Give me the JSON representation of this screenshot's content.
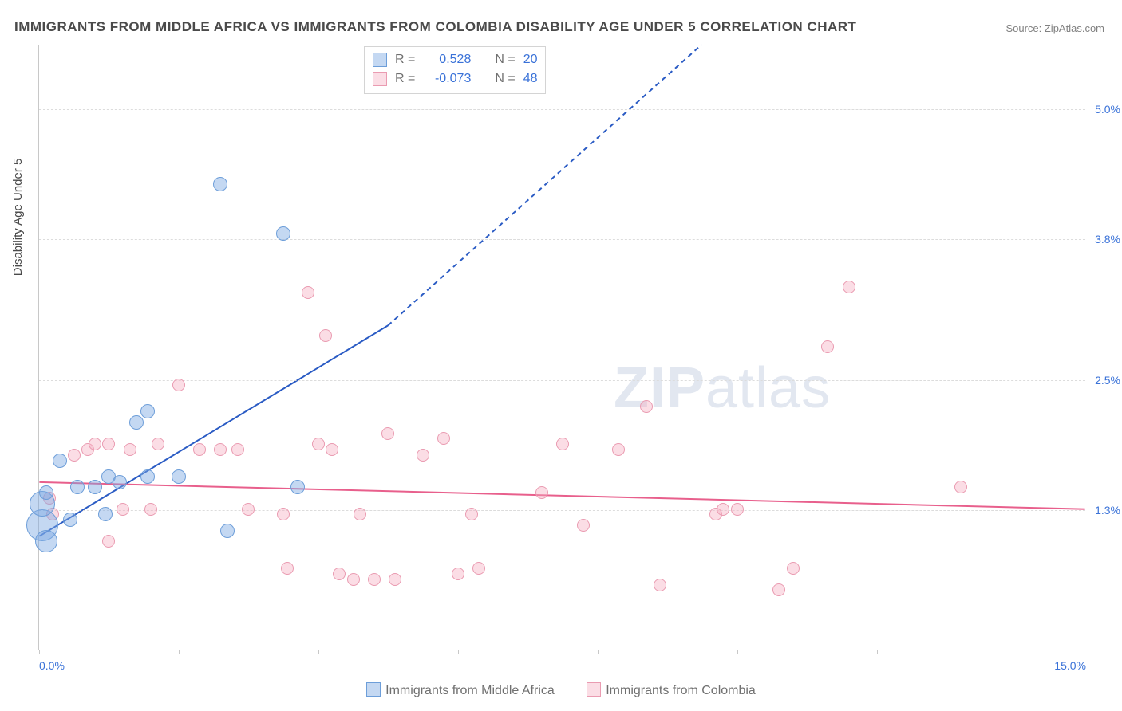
{
  "title": "IMMIGRANTS FROM MIDDLE AFRICA VS IMMIGRANTS FROM COLOMBIA DISABILITY AGE UNDER 5 CORRELATION CHART",
  "source": "Source: ZipAtlas.com",
  "watermark_bold": "ZIP",
  "watermark_rest": "atlas",
  "y_axis_label": "Disability Age Under 5",
  "chart": {
    "type": "scatter",
    "xlim": [
      0.0,
      15.0
    ],
    "ylim": [
      0.0,
      5.6
    ],
    "background_color": "#ffffff",
    "grid_color": "#dcdcdc",
    "axis_color": "#c8c8c8",
    "xtick_positions": [
      0.0,
      2.0,
      4.0,
      6.0,
      8.0,
      10.0,
      12.0,
      14.0
    ],
    "xtick_labels": {
      "0": "0.0%",
      "15": "15.0%"
    },
    "ytick_positions": [
      1.3,
      2.5,
      3.8,
      5.0
    ],
    "ytick_labels": [
      "1.3%",
      "2.5%",
      "3.8%",
      "5.0%"
    ],
    "label_fontsize": 14,
    "label_color": "#3a72d8"
  },
  "series": {
    "blue": {
      "label": "Immigrants from Middle Africa",
      "fill": "rgba(125,168,227,0.45)",
      "stroke": "#6d9ed9",
      "R": "0.528",
      "N": "20",
      "trend": {
        "x1": 0.0,
        "y1": 1.05,
        "x2": 5.0,
        "y2": 3.0,
        "dash_x2": 9.5,
        "dash_y2": 5.6,
        "color": "#2a5bc4",
        "width": 2
      },
      "points": [
        {
          "x": 0.05,
          "y": 1.15,
          "r": 20
        },
        {
          "x": 0.05,
          "y": 1.35,
          "r": 16
        },
        {
          "x": 0.1,
          "y": 1.0,
          "r": 14
        },
        {
          "x": 0.1,
          "y": 1.45,
          "r": 9
        },
        {
          "x": 0.3,
          "y": 1.75,
          "r": 9
        },
        {
          "x": 0.45,
          "y": 1.2,
          "r": 9
        },
        {
          "x": 0.55,
          "y": 1.5,
          "r": 9
        },
        {
          "x": 0.8,
          "y": 1.5,
          "r": 9
        },
        {
          "x": 0.95,
          "y": 1.25,
          "r": 9
        },
        {
          "x": 1.0,
          "y": 1.6,
          "r": 9
        },
        {
          "x": 1.15,
          "y": 1.55,
          "r": 9
        },
        {
          "x": 1.4,
          "y": 2.1,
          "r": 9
        },
        {
          "x": 1.55,
          "y": 2.2,
          "r": 9
        },
        {
          "x": 1.55,
          "y": 1.6,
          "r": 9
        },
        {
          "x": 2.0,
          "y": 1.6,
          "r": 9
        },
        {
          "x": 2.6,
          "y": 4.3,
          "r": 9
        },
        {
          "x": 2.7,
          "y": 1.1,
          "r": 9
        },
        {
          "x": 3.5,
          "y": 3.85,
          "r": 9
        },
        {
          "x": 3.7,
          "y": 1.5,
          "r": 9
        }
      ]
    },
    "pink": {
      "label": "Immigrants from Colombia",
      "fill": "rgba(244,170,190,0.40)",
      "stroke": "#ea9bb1",
      "R": "-0.073",
      "N": "48",
      "trend": {
        "x1": 0.0,
        "y1": 1.55,
        "x2": 15.0,
        "y2": 1.3,
        "color": "#e85f8c",
        "width": 2
      },
      "points": [
        {
          "x": 0.15,
          "y": 1.4,
          "r": 8
        },
        {
          "x": 0.2,
          "y": 1.25,
          "r": 8
        },
        {
          "x": 0.5,
          "y": 1.8,
          "r": 8
        },
        {
          "x": 0.7,
          "y": 1.85,
          "r": 8
        },
        {
          "x": 0.8,
          "y": 1.9,
          "r": 8
        },
        {
          "x": 1.0,
          "y": 1.9,
          "r": 8
        },
        {
          "x": 1.0,
          "y": 1.0,
          "r": 8
        },
        {
          "x": 1.2,
          "y": 1.3,
          "r": 8
        },
        {
          "x": 1.3,
          "y": 1.85,
          "r": 8
        },
        {
          "x": 1.6,
          "y": 1.3,
          "r": 8
        },
        {
          "x": 1.7,
          "y": 1.9,
          "r": 8
        },
        {
          "x": 2.0,
          "y": 2.45,
          "r": 8
        },
        {
          "x": 2.3,
          "y": 1.85,
          "r": 8
        },
        {
          "x": 2.6,
          "y": 1.85,
          "r": 8
        },
        {
          "x": 2.85,
          "y": 1.85,
          "r": 8
        },
        {
          "x": 3.0,
          "y": 1.3,
          "r": 8
        },
        {
          "x": 3.5,
          "y": 1.25,
          "r": 8
        },
        {
          "x": 3.55,
          "y": 0.75,
          "r": 8
        },
        {
          "x": 3.85,
          "y": 3.3,
          "r": 8
        },
        {
          "x": 4.0,
          "y": 1.9,
          "r": 8
        },
        {
          "x": 4.1,
          "y": 2.9,
          "r": 8
        },
        {
          "x": 4.2,
          "y": 1.85,
          "r": 8
        },
        {
          "x": 4.3,
          "y": 0.7,
          "r": 8
        },
        {
          "x": 4.5,
          "y": 0.65,
          "r": 8
        },
        {
          "x": 4.6,
          "y": 1.25,
          "r": 8
        },
        {
          "x": 4.8,
          "y": 0.65,
          "r": 8
        },
        {
          "x": 5.0,
          "y": 2.0,
          "r": 8
        },
        {
          "x": 5.1,
          "y": 0.65,
          "r": 8
        },
        {
          "x": 5.5,
          "y": 1.8,
          "r": 8
        },
        {
          "x": 5.8,
          "y": 1.95,
          "r": 8
        },
        {
          "x": 6.0,
          "y": 0.7,
          "r": 8
        },
        {
          "x": 6.2,
          "y": 1.25,
          "r": 8
        },
        {
          "x": 6.3,
          "y": 0.75,
          "r": 8
        },
        {
          "x": 7.2,
          "y": 1.45,
          "r": 8
        },
        {
          "x": 7.5,
          "y": 1.9,
          "r": 8
        },
        {
          "x": 7.8,
          "y": 1.15,
          "r": 8
        },
        {
          "x": 8.3,
          "y": 1.85,
          "r": 8
        },
        {
          "x": 8.7,
          "y": 2.25,
          "r": 8
        },
        {
          "x": 8.9,
          "y": 0.6,
          "r": 8
        },
        {
          "x": 9.7,
          "y": 1.25,
          "r": 8
        },
        {
          "x": 9.8,
          "y": 1.3,
          "r": 8
        },
        {
          "x": 10.0,
          "y": 1.3,
          "r": 8
        },
        {
          "x": 10.6,
          "y": 0.55,
          "r": 8
        },
        {
          "x": 10.8,
          "y": 0.75,
          "r": 8
        },
        {
          "x": 11.3,
          "y": 2.8,
          "r": 8
        },
        {
          "x": 11.6,
          "y": 3.35,
          "r": 8
        },
        {
          "x": 13.2,
          "y": 1.5,
          "r": 8
        }
      ]
    }
  },
  "stats_labels": {
    "R": "R =",
    "N": "N ="
  }
}
